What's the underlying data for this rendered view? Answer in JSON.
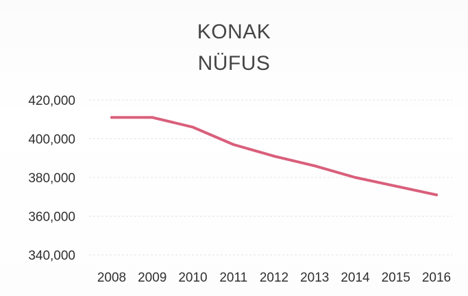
{
  "chart_data": {
    "type": "line",
    "title": "KONAK",
    "subtitle": "NÜFUS",
    "xlabel": "",
    "ylabel": "",
    "categories": [
      "2008",
      "2009",
      "2010",
      "2011",
      "2012",
      "2013",
      "2014",
      "2015",
      "2016"
    ],
    "series": [
      {
        "values": [
          411000,
          411000,
          406000,
          397000,
          391000,
          386000,
          380000,
          375500,
          371000
        ],
        "color": "#d95f7b"
      }
    ],
    "ylim": [
      340000,
      420000
    ],
    "yticks": [
      420000,
      400000,
      380000,
      360000,
      340000
    ],
    "ytick_labels": [
      "420,000",
      "400,000",
      "380,000",
      "360,000",
      "340,000"
    ],
    "grid": true,
    "legend": "none"
  }
}
